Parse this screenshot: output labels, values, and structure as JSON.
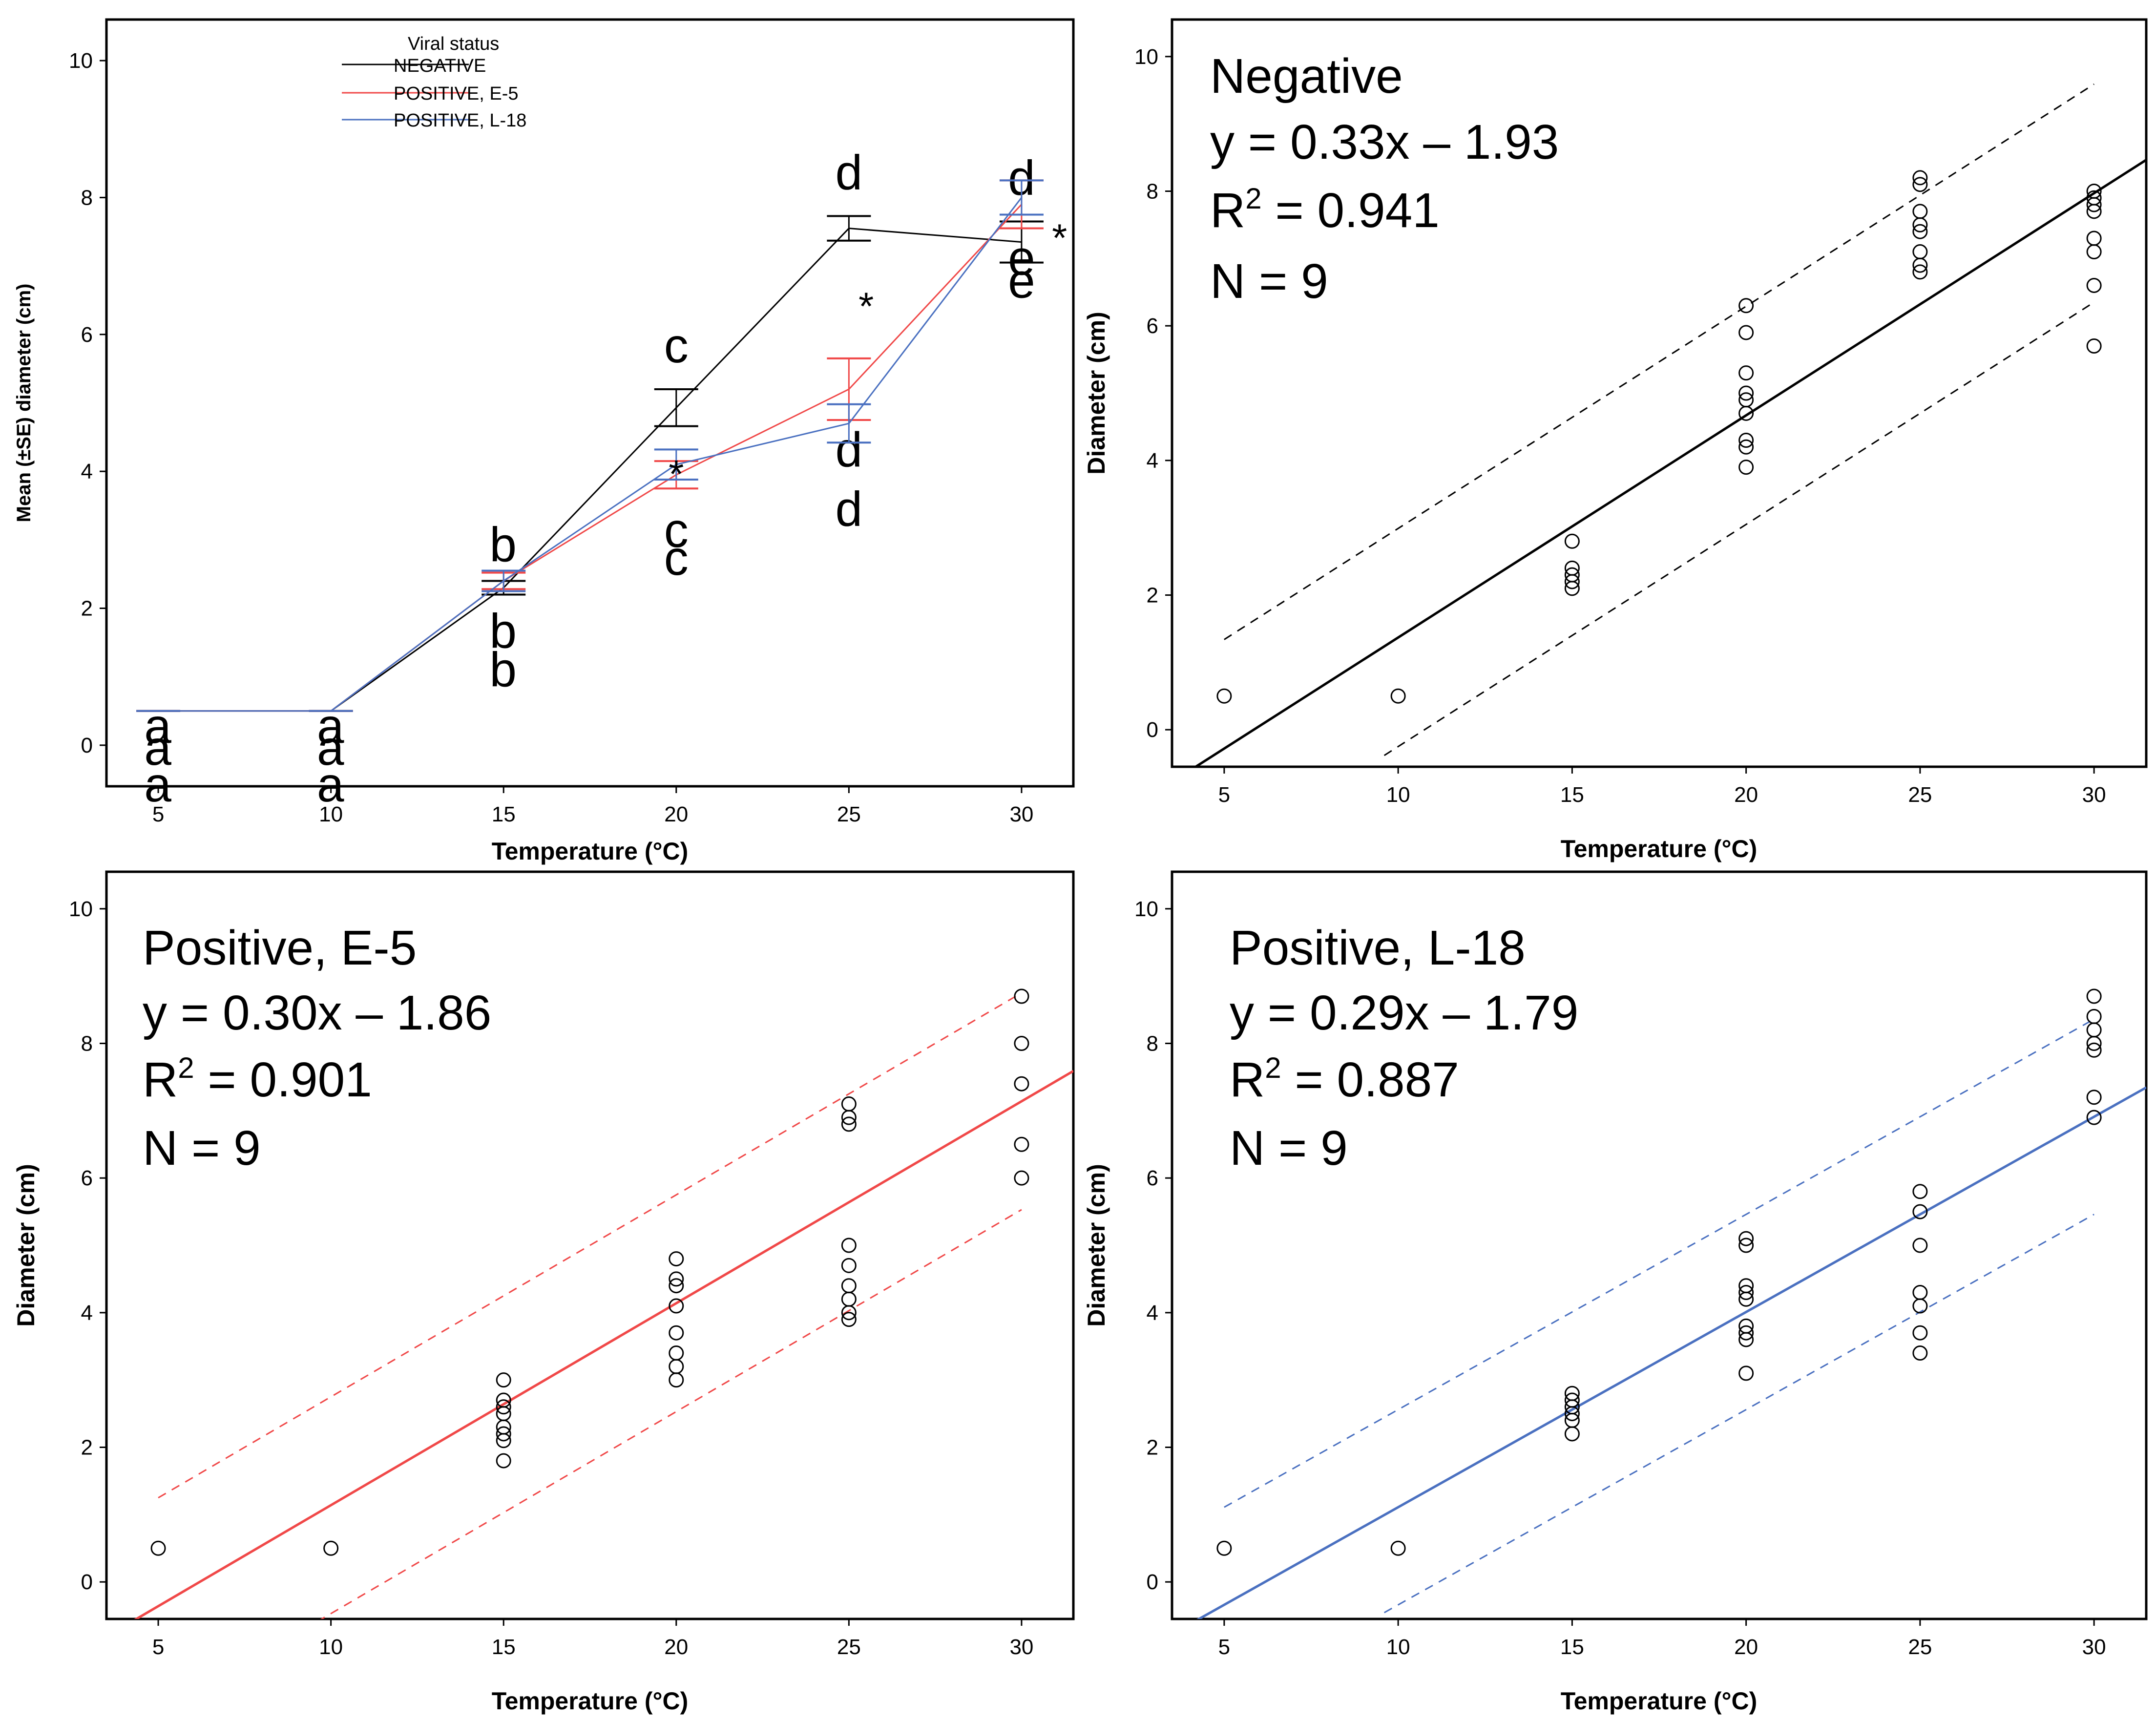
{
  "chart_data": [
    {
      "type": "line",
      "panel": "top-left",
      "xlabel": "Temperature (°C)",
      "ylabel": "Mean (±SE) diameter (cm)",
      "xlim": [
        3.5,
        31.5
      ],
      "ylim": [
        -0.6,
        10.6
      ],
      "xticks": [
        5,
        10,
        15,
        20,
        25,
        30
      ],
      "yticks": [
        0,
        2,
        4,
        6,
        8,
        10
      ],
      "legend": {
        "title": "Viral status",
        "position": "top-left"
      },
      "series": [
        {
          "name": "NEGATIVE",
          "color": "#000000",
          "x": [
            5,
            10,
            15,
            20,
            25,
            30
          ],
          "y": [
            0.5,
            0.5,
            2.3,
            4.93,
            7.55,
            7.35
          ],
          "se": [
            0,
            0,
            0.1,
            0.27,
            0.18,
            0.3
          ],
          "letters": [
            "a",
            "a",
            "b",
            "c",
            "d",
            "d"
          ]
        },
        {
          "name": "POSITIVE, E-5",
          "color": "#f04848",
          "x": [
            5,
            10,
            15,
            20,
            25,
            30
          ],
          "y": [
            0.5,
            0.5,
            2.4,
            3.95,
            5.2,
            7.9
          ],
          "se": [
            0,
            0,
            0.12,
            0.2,
            0.45,
            0.35
          ],
          "letters": [
            "a",
            "a",
            "b",
            "c",
            "d",
            "e"
          ]
        },
        {
          "name": "POSITIVE, L-18",
          "color": "#4a70c0",
          "x": [
            5,
            10,
            15,
            20,
            25,
            30
          ],
          "y": [
            0.5,
            0.5,
            2.4,
            4.1,
            4.7,
            8.0
          ],
          "se": [
            0,
            0,
            0.15,
            0.22,
            0.28,
            0.25
          ],
          "letters": [
            "a",
            "a",
            "b",
            "c",
            "d",
            "e"
          ]
        }
      ],
      "stars": [
        {
          "label": "*",
          "x": 20,
          "y": 4.05
        },
        {
          "label": "*",
          "x": 25.5,
          "y": 6.5
        },
        {
          "label": "*",
          "x": 31.1,
          "y": 7.5
        }
      ]
    },
    {
      "type": "scatter",
      "panel": "top-right",
      "title": "Negative",
      "equation": "y = 0.33x – 1.93",
      "r2_label": "R",
      "r2_sup": "2",
      "r2_value": " = 0.941",
      "n_label": "N = 9",
      "slope": 0.33,
      "intercept": -1.93,
      "ci_offset": 1.62,
      "line_color": "#000000",
      "xlabel": "Temperature (°C)",
      "ylabel": "Diameter (cm)",
      "xlim": [
        3.5,
        31.5
      ],
      "ylim": [
        -0.55,
        10.55
      ],
      "xticks": [
        5,
        10,
        15,
        20,
        25,
        30
      ],
      "yticks": [
        0,
        2,
        4,
        6,
        8,
        10
      ],
      "points": [
        [
          5,
          0.5
        ],
        [
          10,
          0.5
        ],
        [
          15,
          2.1
        ],
        [
          15,
          2.2
        ],
        [
          15,
          2.3
        ],
        [
          15,
          2.4
        ],
        [
          15,
          2.8
        ],
        [
          20,
          3.9
        ],
        [
          20,
          4.2
        ],
        [
          20,
          4.3
        ],
        [
          20,
          4.7
        ],
        [
          20,
          4.9
        ],
        [
          20,
          5.0
        ],
        [
          20,
          5.3
        ],
        [
          20,
          5.9
        ],
        [
          20,
          6.3
        ],
        [
          25,
          6.8
        ],
        [
          25,
          6.9
        ],
        [
          25,
          7.1
        ],
        [
          25,
          7.4
        ],
        [
          25,
          7.5
        ],
        [
          25,
          7.7
        ],
        [
          25,
          8.1
        ],
        [
          25,
          8.2
        ],
        [
          30,
          5.7
        ],
        [
          30,
          6.6
        ],
        [
          30,
          7.1
        ],
        [
          30,
          7.3
        ],
        [
          30,
          7.7
        ],
        [
          30,
          7.8
        ],
        [
          30,
          7.9
        ],
        [
          30,
          8.0
        ]
      ]
    },
    {
      "type": "scatter",
      "panel": "bottom-left",
      "title": "Positive, E-5",
      "equation": "y = 0.30x – 1.86",
      "r2_label": "R",
      "r2_sup": "2",
      "r2_value": " = 0.901",
      "n_label": "N = 9",
      "slope": 0.3,
      "intercept": -1.86,
      "ci_offset": 1.61,
      "line_color": "#f04848",
      "xlabel": "Temperature (°C)",
      "ylabel": "Diameter (cm)",
      "xlim": [
        3.5,
        31.5
      ],
      "ylim": [
        -0.55,
        10.55
      ],
      "xticks": [
        5,
        10,
        15,
        20,
        25,
        30
      ],
      "yticks": [
        0,
        2,
        4,
        6,
        8,
        10
      ],
      "points": [
        [
          5,
          0.5
        ],
        [
          10,
          0.5
        ],
        [
          15,
          1.8
        ],
        [
          15,
          2.1
        ],
        [
          15,
          2.2
        ],
        [
          15,
          2.3
        ],
        [
          15,
          2.5
        ],
        [
          15,
          2.6
        ],
        [
          15,
          2.7
        ],
        [
          15,
          3.0
        ],
        [
          20,
          3.0
        ],
        [
          20,
          3.2
        ],
        [
          20,
          3.4
        ],
        [
          20,
          3.7
        ],
        [
          20,
          4.1
        ],
        [
          20,
          4.4
        ],
        [
          20,
          4.5
        ],
        [
          20,
          4.8
        ],
        [
          25,
          3.9
        ],
        [
          25,
          4.0
        ],
        [
          25,
          4.2
        ],
        [
          25,
          4.4
        ],
        [
          25,
          4.7
        ],
        [
          25,
          5.0
        ],
        [
          25,
          6.8
        ],
        [
          25,
          6.9
        ],
        [
          25,
          7.1
        ],
        [
          30,
          6.0
        ],
        [
          30,
          6.5
        ],
        [
          30,
          7.4
        ],
        [
          30,
          8.0
        ],
        [
          30,
          8.7
        ]
      ]
    },
    {
      "type": "scatter",
      "panel": "bottom-right",
      "title": "Positive, L-18",
      "equation": "y = 0.29x – 1.79",
      "r2_label": "R",
      "r2_sup": "2",
      "r2_value": " = 0.887",
      "n_label": "N = 9",
      "slope": 0.29,
      "intercept": -1.79,
      "ci_offset": 1.45,
      "line_color": "#4a70c0",
      "xlabel": "Temperature (°C)",
      "ylabel": "Diameter (cm)",
      "xlim": [
        3.5,
        31.5
      ],
      "ylim": [
        -0.55,
        10.55
      ],
      "xticks": [
        5,
        10,
        15,
        20,
        25,
        30
      ],
      "yticks": [
        0,
        2,
        4,
        6,
        8,
        10
      ],
      "points": [
        [
          5,
          0.5
        ],
        [
          10,
          0.5
        ],
        [
          15,
          2.2
        ],
        [
          15,
          2.4
        ],
        [
          15,
          2.5
        ],
        [
          15,
          2.6
        ],
        [
          15,
          2.7
        ],
        [
          15,
          2.8
        ],
        [
          20,
          3.1
        ],
        [
          20,
          3.6
        ],
        [
          20,
          3.7
        ],
        [
          20,
          3.8
        ],
        [
          20,
          4.2
        ],
        [
          20,
          4.3
        ],
        [
          20,
          4.4
        ],
        [
          20,
          5.0
        ],
        [
          20,
          5.1
        ],
        [
          25,
          3.4
        ],
        [
          25,
          3.7
        ],
        [
          25,
          4.1
        ],
        [
          25,
          4.3
        ],
        [
          25,
          5.0
        ],
        [
          25,
          5.5
        ],
        [
          25,
          5.8
        ],
        [
          30,
          6.9
        ],
        [
          30,
          7.2
        ],
        [
          30,
          7.9
        ],
        [
          30,
          8.0
        ],
        [
          30,
          8.2
        ],
        [
          30,
          8.4
        ],
        [
          30,
          8.7
        ]
      ]
    }
  ]
}
